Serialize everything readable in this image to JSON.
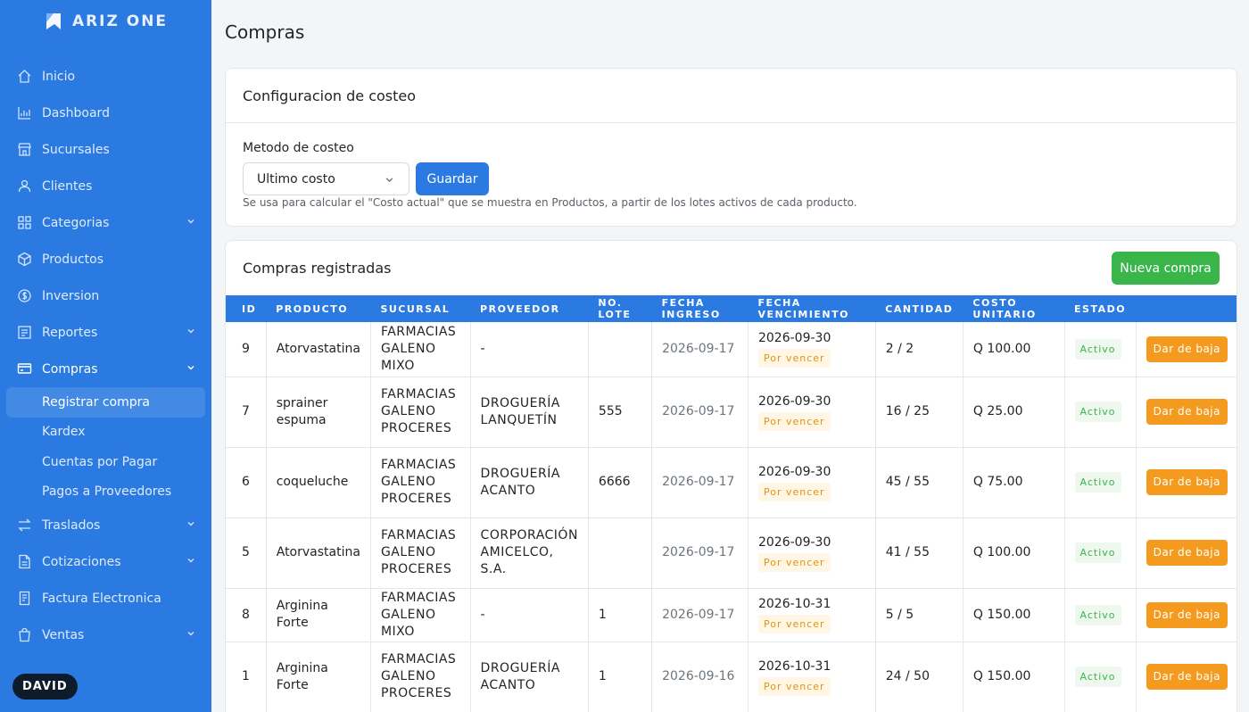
{
  "brand": {
    "name": "ARIZ ONE"
  },
  "sidebar": {
    "items": [
      {
        "label": "Inicio",
        "icon": "home-icon"
      },
      {
        "label": "Dashboard",
        "icon": "chart-icon"
      },
      {
        "label": "Sucursales",
        "icon": "store-icon"
      },
      {
        "label": "Clientes",
        "icon": "user-icon"
      },
      {
        "label": "Categorias",
        "icon": "grid-icon"
      },
      {
        "label": "Productos",
        "icon": "box-icon"
      },
      {
        "label": "Inversion",
        "icon": "coin-icon"
      },
      {
        "label": "Reportes",
        "icon": "report-icon"
      },
      {
        "label": "Compras",
        "icon": "cart-icon"
      },
      {
        "label": "Traslados",
        "icon": "transfer-icon"
      },
      {
        "label": "Cotizaciones",
        "icon": "document-icon"
      },
      {
        "label": "Factura Electronica",
        "icon": "invoice-icon"
      },
      {
        "label": "Ventas",
        "icon": "bag-icon"
      }
    ],
    "compras_submenu": [
      "Registrar compra",
      "Kardex",
      "Cuentas por Pagar",
      "Pagos a Proveedores"
    ],
    "user": "DAVID"
  },
  "page": {
    "title": "Compras"
  },
  "config": {
    "title": "Configuracion de costeo",
    "field_label": "Metodo de costeo",
    "selected": "Ultimo costo",
    "save": "Guardar",
    "help": "Se usa para calcular el \"Costo actual\" que se muestra en Productos, a partir de los lotes activos de cada producto."
  },
  "compras": {
    "title": "Compras registradas",
    "new_button": "Nueva compra",
    "columns": [
      "ID",
      "PRODUCTO",
      "SUCURSAL",
      "PROVEEDOR",
      "NO. LOTE",
      "FECHA INGRESO",
      "FECHA VENCIMIENTO",
      "CANTIDAD",
      "COSTO UNITARIO",
      "ESTADO",
      ""
    ],
    "rows": [
      {
        "id": "9",
        "producto": "Atorvastatina",
        "sucursal": "FARMACIAS GALENO MIXO",
        "proveedor": "-",
        "lote": "",
        "ingreso": "2026-09-17",
        "vencimiento": "2026-09-30",
        "venc_estado": "Por vencer",
        "cantidad": "2 / 2",
        "costo": "Q 100.00",
        "estado": "Activo",
        "accion": "Dar de baja"
      },
      {
        "id": "7",
        "producto": "sprainer espuma",
        "sucursal": "FARMACIAS GALENO PROCERES",
        "proveedor": "DROGUERÍA LANQUETÍN",
        "lote": "555",
        "ingreso": "2026-09-17",
        "vencimiento": "2026-09-30",
        "venc_estado": "Por vencer",
        "cantidad": "16 / 25",
        "costo": "Q 25.00",
        "estado": "Activo",
        "accion": "Dar de baja"
      },
      {
        "id": "6",
        "producto": "coqueluche",
        "sucursal": "FARMACIAS GALENO PROCERES",
        "proveedor": "DROGUERÍA ACANTO",
        "lote": "6666",
        "ingreso": "2026-09-17",
        "vencimiento": "2026-09-30",
        "venc_estado": "Por vencer",
        "cantidad": "45 / 55",
        "costo": "Q 75.00",
        "estado": "Activo",
        "accion": "Dar de baja"
      },
      {
        "id": "5",
        "producto": "Atorvastatina",
        "sucursal": "FARMACIAS GALENO PROCERES",
        "proveedor": "CORPORACIÓN AMICELCO, S.A.",
        "lote": "",
        "ingreso": "2026-09-17",
        "vencimiento": "2026-09-30",
        "venc_estado": "Por vencer",
        "cantidad": "41 / 55",
        "costo": "Q 100.00",
        "estado": "Activo",
        "accion": "Dar de baja"
      },
      {
        "id": "8",
        "producto": "Arginina Forte",
        "sucursal": "FARMACIAS GALENO MIXO",
        "proveedor": "-",
        "lote": "1",
        "ingreso": "2026-09-17",
        "vencimiento": "2026-10-31",
        "venc_estado": "Por vencer",
        "cantidad": "5 / 5",
        "costo": "Q 150.00",
        "estado": "Activo",
        "accion": "Dar de baja"
      },
      {
        "id": "1",
        "producto": "Arginina Forte",
        "sucursal": "FARMACIAS GALENO PROCERES",
        "proveedor": "DROGUERÍA ACANTO",
        "lote": "1",
        "ingreso": "2026-09-16",
        "vencimiento": "2026-10-31",
        "venc_estado": "Por vencer",
        "cantidad": "24 / 50",
        "costo": "Q 150.00",
        "estado": "Activo",
        "accion": "Dar de baja"
      }
    ]
  }
}
